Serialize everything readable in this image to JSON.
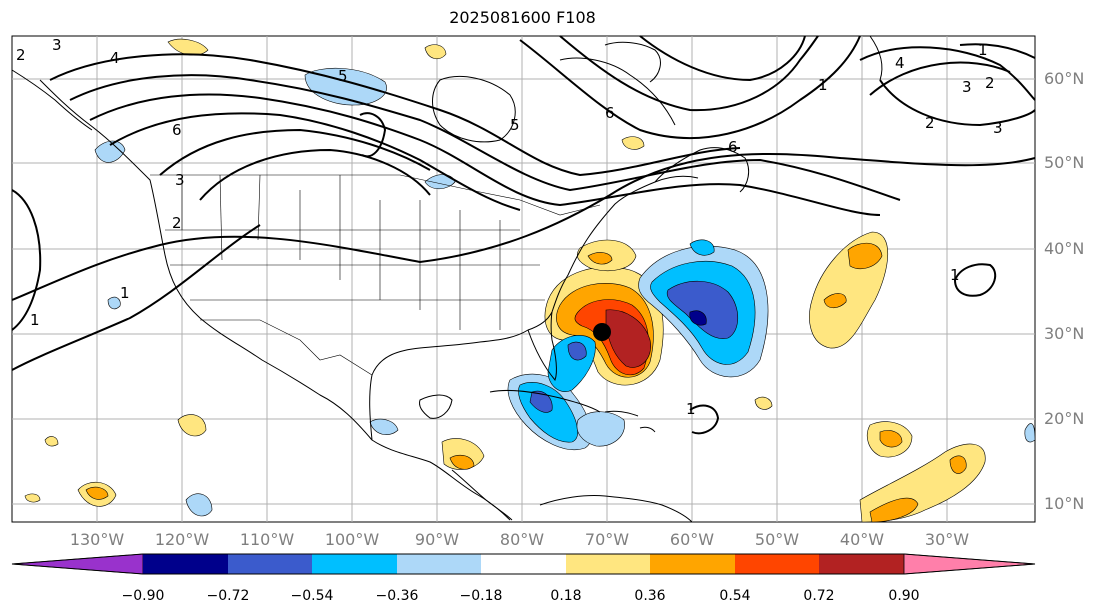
{
  "title": "2025081600 F108",
  "map": {
    "lon_labels": [
      "130°W",
      "120°W",
      "110°W",
      "100°W",
      "90°W",
      "80°W",
      "70°W",
      "60°W",
      "50°W",
      "40°W",
      "30°W"
    ],
    "lat_labels": [
      "60°N",
      "50°N",
      "40°N",
      "30°N",
      "20°N",
      "10°N"
    ],
    "contour_labels": [
      "1",
      "2",
      "3",
      "4",
      "5",
      "6"
    ],
    "storm_marker": "storm-center"
  },
  "colorbar": {
    "tick_labels": [
      "−0.90",
      "−0.72",
      "−0.54",
      "−0.36",
      "−0.18",
      "0.18",
      "0.36",
      "0.54",
      "0.72",
      "0.90"
    ],
    "colors": [
      "#9932cc",
      "#00008b",
      "#3b5bcc",
      "#00bfff",
      "#add8f8",
      "#ffffff",
      "#ffe680",
      "#ffa500",
      "#ff4500",
      "#b22222",
      "#ff7faa"
    ]
  }
}
